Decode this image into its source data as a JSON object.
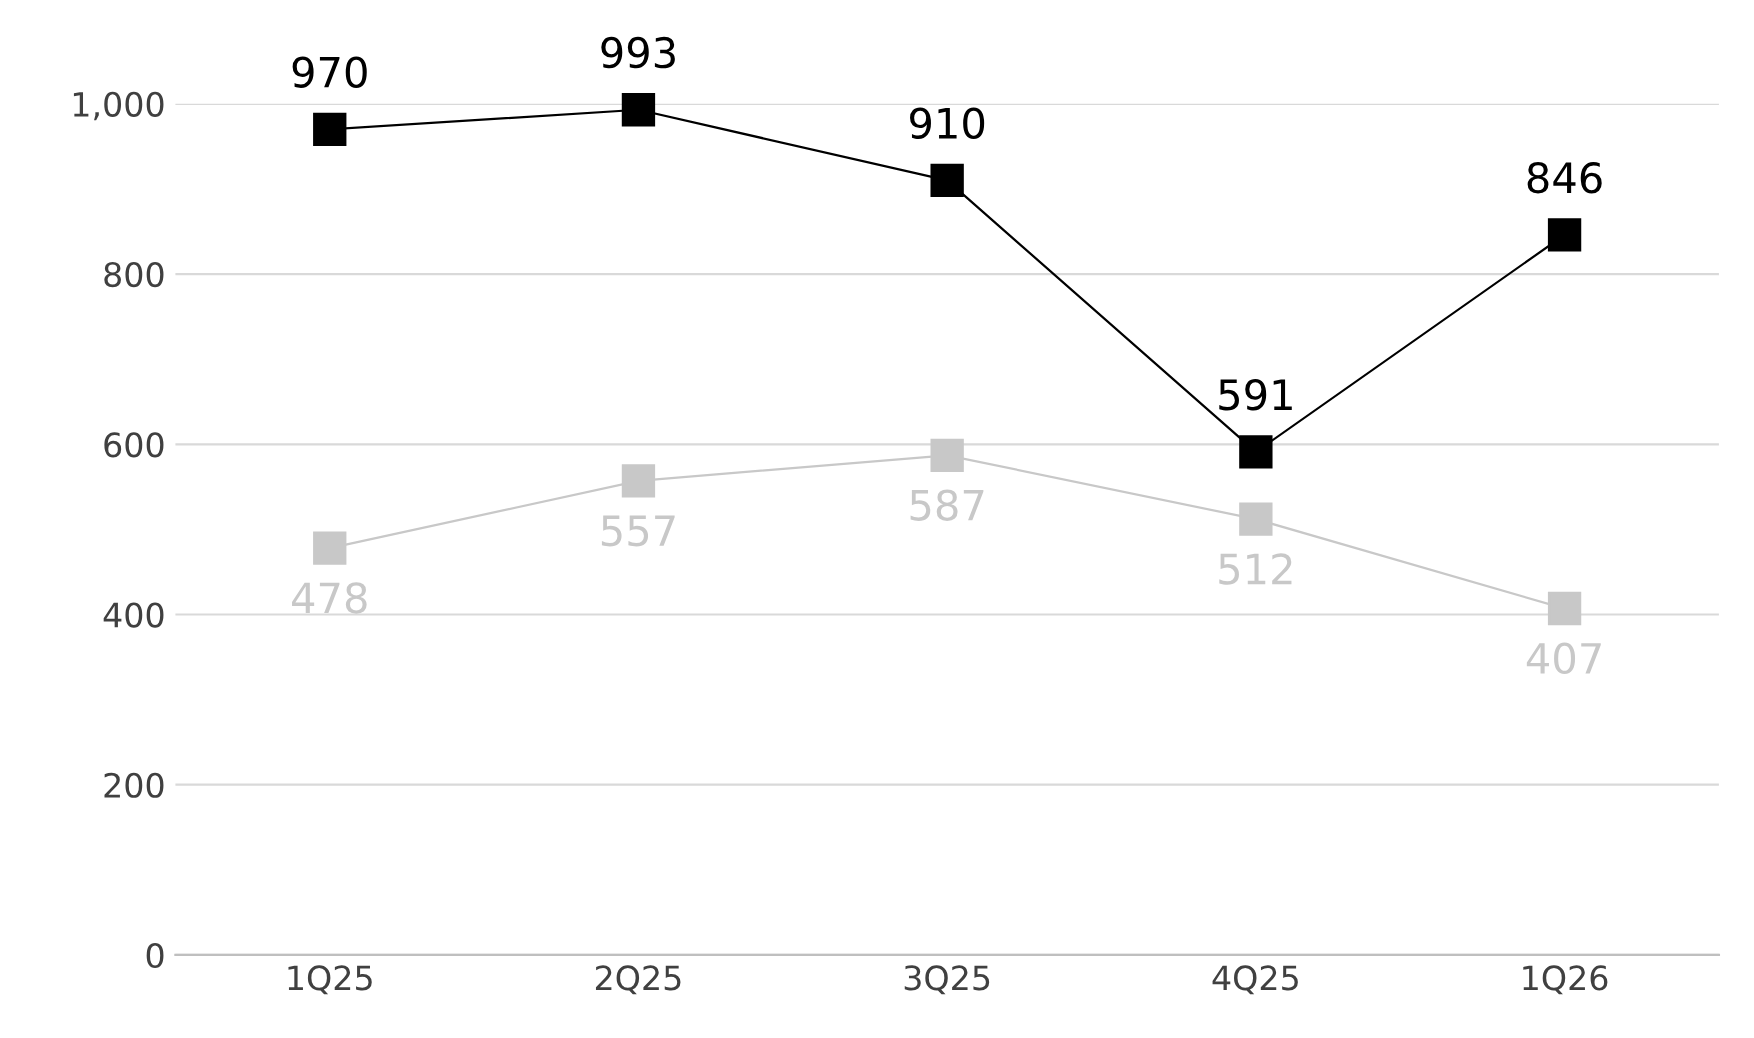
{
  "chart_data": {
    "type": "line",
    "categories": [
      "1Q25",
      "2Q25",
      "3Q25",
      "4Q25",
      "1Q26"
    ],
    "series": [
      {
        "color": "#000000",
        "values": [
          970,
          993,
          910,
          591,
          846
        ]
      },
      {
        "color": "#c8c8c8",
        "values": [
          478,
          557,
          587,
          512,
          407
        ]
      }
    ],
    "ylim": [
      0,
      1000
    ],
    "yticks": [
      0,
      200,
      400,
      600,
      800,
      {
        "value": 1000,
        "label": "1,000"
      }
    ],
    "grid": "y",
    "marker": "square",
    "line_style": "solid",
    "data_labels": true,
    "legend": false
  }
}
